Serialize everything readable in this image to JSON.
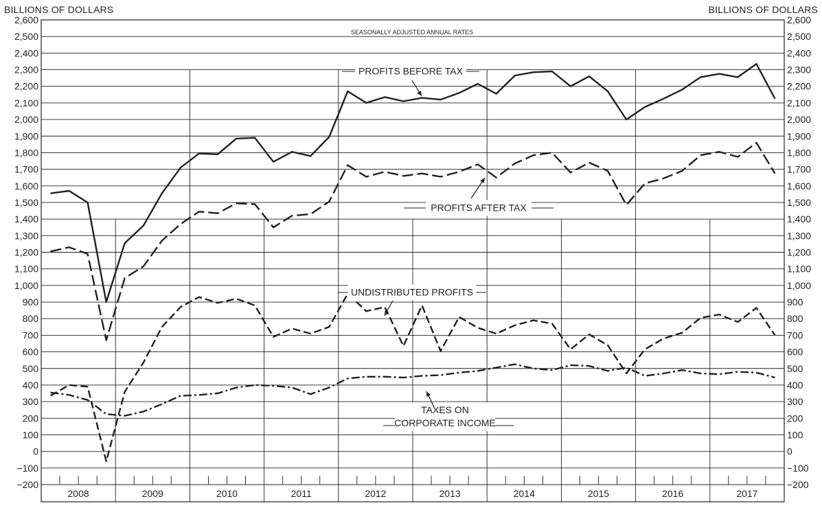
{
  "chart_data": {
    "type": "line",
    "units_left": "BILLIONS OF DOLLARS",
    "units_right": "BILLIONS OF DOLLARS",
    "subtitle": "SEASONALLY ADJUSTED ANNUAL RATES",
    "ylim": [
      -200,
      2600
    ],
    "yticks": [
      -200,
      -100,
      0,
      100,
      200,
      300,
      400,
      500,
      600,
      700,
      800,
      900,
      1000,
      1100,
      1200,
      1300,
      1400,
      1500,
      1600,
      1700,
      1800,
      1900,
      2000,
      2100,
      2200,
      2300,
      2400,
      2500,
      2600
    ],
    "ytick_labels": [
      "−200",
      "−100",
      "0",
      "100",
      "200",
      "300",
      "400",
      "500",
      "600",
      "700",
      "800",
      "900",
      "1,000",
      "1,100",
      "1,200",
      "1,300",
      "1,400",
      "1,500",
      "1,600",
      "1,700",
      "1,800",
      "1,900",
      "2,000",
      "2,100",
      "2,200",
      "2,300",
      "2,400",
      "2,500",
      "2,600"
    ],
    "years": [
      "2008",
      "2009",
      "2010",
      "2011",
      "2012",
      "2013",
      "2014",
      "2015",
      "2016",
      "2017"
    ],
    "x": [
      "2008 Q1",
      "2008 Q2",
      "2008 Q3",
      "2008 Q4",
      "2009 Q1",
      "2009 Q2",
      "2009 Q3",
      "2009 Q4",
      "2010 Q1",
      "2010 Q2",
      "2010 Q3",
      "2010 Q4",
      "2011 Q1",
      "2011 Q2",
      "2011 Q3",
      "2011 Q4",
      "2012 Q1",
      "2012 Q2",
      "2012 Q3",
      "2012 Q4",
      "2013 Q1",
      "2013 Q2",
      "2013 Q3",
      "2013 Q4",
      "2014 Q1",
      "2014 Q2",
      "2014 Q3",
      "2014 Q4",
      "2015 Q1",
      "2015 Q2",
      "2015 Q3",
      "2015 Q4",
      "2016 Q1",
      "2016 Q2",
      "2016 Q3",
      "2016 Q4",
      "2017 Q1",
      "2017 Q2",
      "2017 Q3",
      "2017 Q4"
    ],
    "grid": "horizontal at every 100; vertical at year boundaries",
    "series": [
      {
        "name": "PROFITS BEFORE TAX",
        "style": "solid",
        "color": "#231f20",
        "values": [
          1555,
          1570,
          1500,
          900,
          1255,
          1360,
          1555,
          1710,
          1795,
          1790,
          1885,
          1890,
          1745,
          1805,
          1780,
          1895,
          2170,
          2100,
          2135,
          2110,
          2130,
          2120,
          2160,
          2215,
          2155,
          2265,
          2285,
          2290,
          2200,
          2260,
          2170,
          2000,
          2075,
          2125,
          2180,
          2255,
          2275,
          2255,
          2335,
          2125
        ]
      },
      {
        "name": "PROFITS AFTER TAX",
        "style": "long-dash",
        "color": "#231f20",
        "values": [
          1205,
          1230,
          1190,
          670,
          1045,
          1115,
          1270,
          1370,
          1445,
          1435,
          1495,
          1490,
          1350,
          1420,
          1430,
          1505,
          1725,
          1655,
          1685,
          1660,
          1675,
          1655,
          1685,
          1730,
          1650,
          1735,
          1785,
          1800,
          1680,
          1740,
          1690,
          1485,
          1615,
          1645,
          1690,
          1785,
          1805,
          1775,
          1860,
          1675
        ]
      },
      {
        "name": "UNDISTRIBUTED PROFITS",
        "style": "dash",
        "color": "#231f20",
        "values": [
          335,
          400,
          390,
          -60,
          360,
          535,
          750,
          870,
          930,
          895,
          920,
          880,
          690,
          740,
          710,
          750,
          950,
          845,
          870,
          635,
          880,
          605,
          810,
          745,
          710,
          760,
          790,
          770,
          615,
          705,
          640,
          470,
          615,
          680,
          715,
          805,
          825,
          780,
          865,
          700
        ]
      },
      {
        "name": "TAXES ON CORPORATE INCOME",
        "style": "dash-dot",
        "color": "#231f20",
        "values": [
          355,
          340,
          310,
          225,
          215,
          240,
          285,
          335,
          340,
          350,
          385,
          400,
          395,
          385,
          345,
          385,
          440,
          450,
          450,
          445,
          455,
          460,
          475,
          485,
          505,
          525,
          500,
          490,
          520,
          515,
          485,
          505,
          455,
          470,
          490,
          470,
          465,
          480,
          475,
          445
        ]
      }
    ],
    "annotations": [
      {
        "lines": [
          "PROFITS BEFORE TAX"
        ]
      },
      {
        "lines": [
          "PROFITS AFTER TAX"
        ]
      },
      {
        "lines": [
          "UNDISTRIBUTED PROFITS"
        ]
      },
      {
        "lines": [
          "TAXES ON",
          "CORPORATE INCOME"
        ]
      }
    ]
  }
}
